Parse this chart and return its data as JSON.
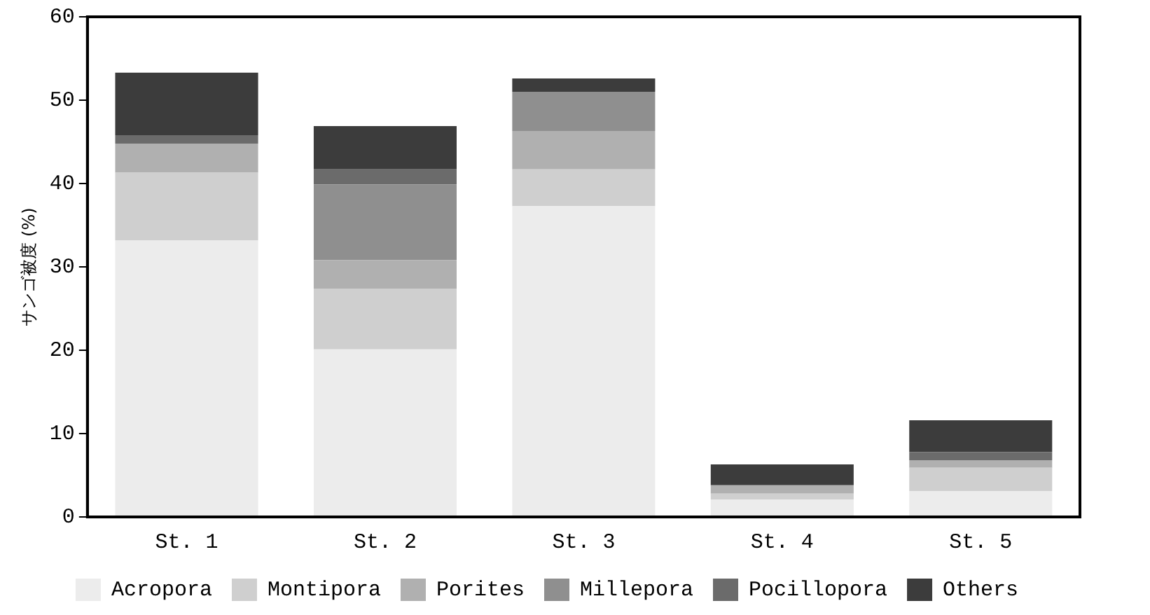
{
  "chart_data": {
    "type": "bar",
    "stacked": true,
    "ylabel": "サンゴ被度 (%)",
    "categories": [
      "St. 1",
      "St. 2",
      "St. 3",
      "St. 4",
      "St. 5"
    ],
    "series": [
      {
        "name": "Acropora",
        "color": "#ececec",
        "values": [
          33.2,
          20.1,
          37.3,
          2.1,
          3.1
        ]
      },
      {
        "name": "Montipora",
        "color": "#cfcfcf",
        "values": [
          8.1,
          7.3,
          4.4,
          0.7,
          2.8
        ]
      },
      {
        "name": "Porites",
        "color": "#b0b0b0",
        "values": [
          3.5,
          3.4,
          4.6,
          1.0,
          0.9
        ]
      },
      {
        "name": "Millepora",
        "color": "#8f8f8f",
        "values": [
          0,
          9.1,
          4.7,
          0,
          0
        ]
      },
      {
        "name": "Pocillopora",
        "color": "#6b6b6b",
        "values": [
          1.0,
          1.8,
          0,
          0,
          1.0
        ]
      },
      {
        "name": "Others",
        "color": "#3c3c3c",
        "values": [
          7.5,
          5.2,
          1.6,
          2.5,
          3.8
        ]
      }
    ],
    "ylim": [
      0,
      60
    ],
    "yticks": [
      0,
      10,
      20,
      30,
      40,
      50,
      60
    ],
    "grid": false,
    "legend": "bottom"
  }
}
